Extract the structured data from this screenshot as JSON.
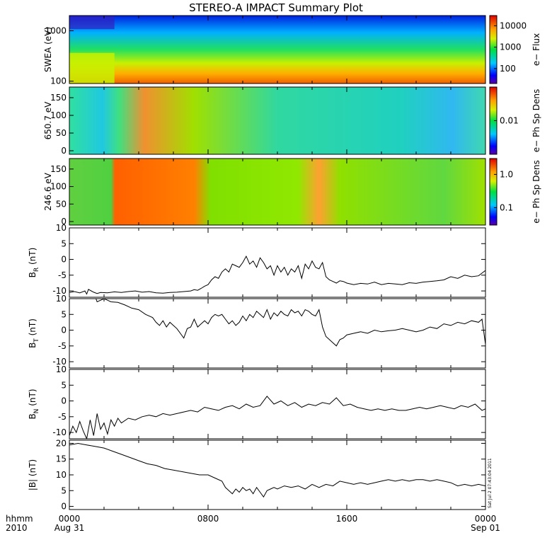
{
  "title": "STEREO-A IMPACT Summary Plot",
  "x_axis": {
    "row1_label": "hhmm",
    "row2_label": "2010",
    "ticks": [
      {
        "hour": 0,
        "label": "0000",
        "sublabel": "Aug 31"
      },
      {
        "hour": 8,
        "label": "0800",
        "sublabel": ""
      },
      {
        "hour": 16,
        "label": "1600",
        "sublabel": ""
      },
      {
        "hour": 24,
        "label": "0000",
        "sublabel": "Sep 01"
      }
    ],
    "range_hours": [
      0,
      24
    ]
  },
  "stamp": "Sat Jul  2 07:43:04 2011",
  "spectrograms": [
    {
      "id": "swea",
      "ylabel": "SWEA (eV)",
      "yscale": "log",
      "yticks": [
        {
          "v": 100,
          "label": "100"
        },
        {
          "v": 1000,
          "label": "1000"
        }
      ],
      "ylim": [
        90,
        2000
      ],
      "colorbar": {
        "label": "e− Flux",
        "scale": "log",
        "range": [
          20,
          30000
        ],
        "ticks": [
          {
            "v": 100,
            "label": "100"
          },
          {
            "v": 1000,
            "label": "1000"
          },
          {
            "v": 10000,
            "label": "10000"
          }
        ]
      }
    },
    {
      "id": "pad650",
      "ylabel": "650.7 eV",
      "yscale": "linear",
      "yticks": [
        {
          "v": 0,
          "label": "0"
        },
        {
          "v": 50,
          "label": "50"
        },
        {
          "v": 100,
          "label": "100"
        },
        {
          "v": 150,
          "label": "150"
        }
      ],
      "ylim": [
        -10,
        180
      ],
      "colorbar": {
        "label": "e− Ph Sp Dens",
        "scale": "log",
        "range": [
          0.001,
          0.1
        ],
        "ticks": [
          {
            "v": 0.01,
            "label": "0.01"
          }
        ]
      }
    },
    {
      "id": "pad246",
      "ylabel": "246.6 eV",
      "yscale": "linear",
      "yticks": [
        {
          "v": 0,
          "label": "0"
        },
        {
          "v": 50,
          "label": "50"
        },
        {
          "v": 100,
          "label": "100"
        },
        {
          "v": 150,
          "label": "150"
        }
      ],
      "ylim": [
        -10,
        180
      ],
      "colorbar": {
        "label": "e− Ph Sp Dens",
        "scale": "log",
        "range": [
          0.03,
          3.0
        ],
        "ticks": [
          {
            "v": 0.1,
            "label": "0.1"
          },
          {
            "v": 1.0,
            "label": "1.0"
          }
        ]
      }
    }
  ],
  "chart_data": [
    {
      "type": "line",
      "id": "br",
      "ylabel": "BR (nT)",
      "ylabel_main": "B",
      "ylabel_sub": "R",
      "ylabel_unit": "(nT)",
      "ylim": [
        -12,
        10
      ],
      "yticks": [
        -10,
        -5,
        0,
        5,
        10
      ],
      "x": [
        0,
        0.3,
        0.6,
        0.9,
        1.0,
        1.1,
        1.4,
        1.6,
        1.8,
        2.2,
        2.6,
        3.0,
        3.4,
        3.8,
        4.2,
        4.6,
        5.0,
        5.4,
        5.8,
        6.2,
        6.6,
        7.0,
        7.2,
        7.4,
        7.6,
        7.8,
        8.0,
        8.2,
        8.4,
        8.6,
        8.8,
        9.0,
        9.2,
        9.4,
        9.6,
        9.8,
        10.0,
        10.2,
        10.4,
        10.6,
        10.8,
        11.0,
        11.2,
        11.4,
        11.6,
        11.8,
        12.0,
        12.2,
        12.4,
        12.6,
        12.8,
        13.0,
        13.2,
        13.4,
        13.6,
        13.8,
        14.0,
        14.2,
        14.4,
        14.6,
        14.8,
        15.0,
        15.2,
        15.4,
        15.6,
        15.8,
        16.0,
        16.4,
        16.8,
        17.2,
        17.6,
        18.0,
        18.4,
        18.8,
        19.2,
        19.6,
        20.0,
        20.4,
        20.8,
        21.2,
        21.6,
        22.0,
        22.4,
        22.8,
        23.2,
        23.6,
        24.0
      ],
      "y": [
        -10.5,
        -10.2,
        -10.6,
        -10.0,
        -11.0,
        -9.5,
        -10.4,
        -10.8,
        -10.5,
        -10.6,
        -10.3,
        -10.5,
        -10.2,
        -10.0,
        -10.4,
        -10.2,
        -10.6,
        -10.7,
        -10.5,
        -10.4,
        -10.2,
        -10.0,
        -9.6,
        -9.8,
        -9.2,
        -8.5,
        -8.0,
        -6.5,
        -5.5,
        -6.0,
        -4.0,
        -3.0,
        -4.0,
        -1.5,
        -2.0,
        -2.5,
        -1.0,
        1.0,
        -1.5,
        -0.5,
        -2.5,
        0.5,
        -1.0,
        -3.0,
        -2.0,
        -5.0,
        -2.0,
        -4.0,
        -2.5,
        -5.0,
        -3.0,
        -4.0,
        -2.0,
        -6.0,
        -1.5,
        -3.0,
        -0.5,
        -2.5,
        -3.0,
        -1.0,
        -5.5,
        -6.5,
        -7.0,
        -7.5,
        -6.8,
        -7.0,
        -7.5,
        -8.0,
        -7.6,
        -7.8,
        -7.2,
        -8.0,
        -7.6,
        -7.8,
        -8.0,
        -7.4,
        -7.6,
        -7.2,
        -7.0,
        -6.8,
        -6.5,
        -5.5,
        -6.0,
        -5.0,
        -5.5,
        -5.2,
        -3.5
      ]
    },
    {
      "type": "line",
      "id": "bt",
      "ylabel": "BT (nT)",
      "ylabel_main": "B",
      "ylabel_sub": "T",
      "ylabel_unit": "(nT)",
      "ylim": [
        -12,
        10
      ],
      "yticks": [
        -10,
        -5,
        0,
        5,
        10
      ],
      "x": [
        1.5,
        1.6,
        2.0,
        2.2,
        2.4,
        2.8,
        3.2,
        3.6,
        4.0,
        4.4,
        4.8,
        5.0,
        5.2,
        5.4,
        5.6,
        5.8,
        6.0,
        6.2,
        6.4,
        6.6,
        6.8,
        7.0,
        7.2,
        7.4,
        7.6,
        7.8,
        8.0,
        8.2,
        8.4,
        8.6,
        8.8,
        9.0,
        9.2,
        9.4,
        9.6,
        9.8,
        10.0,
        10.2,
        10.4,
        10.6,
        10.8,
        11.0,
        11.2,
        11.4,
        11.6,
        11.8,
        12.0,
        12.2,
        12.4,
        12.6,
        12.8,
        13.0,
        13.2,
        13.4,
        13.6,
        13.8,
        14.0,
        14.2,
        14.4,
        14.6,
        14.8,
        15.0,
        15.2,
        15.4,
        15.6,
        15.8,
        16.0,
        16.4,
        16.8,
        17.2,
        17.6,
        18.0,
        18.4,
        18.8,
        19.2,
        19.6,
        20.0,
        20.4,
        20.8,
        21.2,
        21.6,
        22.0,
        22.4,
        22.8,
        23.2,
        23.6,
        23.8,
        24.0
      ],
      "y": [
        10.5,
        9.0,
        10.0,
        9.5,
        9.0,
        8.8,
        8.0,
        7.0,
        6.5,
        5.0,
        4.0,
        2.5,
        1.5,
        3.0,
        1.0,
        2.5,
        1.5,
        0.5,
        -1.0,
        -2.5,
        0.5,
        1.0,
        3.5,
        1.0,
        2.0,
        3.0,
        2.0,
        4.0,
        5.0,
        4.5,
        5.0,
        3.5,
        2.0,
        3.0,
        1.5,
        2.5,
        4.5,
        3.0,
        5.0,
        4.0,
        6.0,
        5.0,
        4.0,
        6.5,
        3.5,
        5.5,
        4.5,
        6.0,
        5.0,
        4.5,
        6.5,
        5.5,
        6.0,
        4.5,
        6.5,
        6.0,
        5.0,
        4.5,
        6.5,
        1.0,
        -2.0,
        -3.0,
        -4.0,
        -5.0,
        -3.0,
        -2.5,
        -1.5,
        -1.0,
        -0.5,
        -1.0,
        0.0,
        -0.5,
        -0.2,
        0.0,
        0.5,
        0.0,
        -0.5,
        0.0,
        1.0,
        0.5,
        2.0,
        1.5,
        2.5,
        2.0,
        3.0,
        2.5,
        3.5,
        -4.5
      ]
    },
    {
      "type": "line",
      "id": "bn",
      "ylabel": "BN (nT)",
      "ylabel_main": "B",
      "ylabel_sub": "N",
      "ylabel_unit": "(nT)",
      "ylim": [
        -12,
        10
      ],
      "yticks": [
        -10,
        -5,
        0,
        5,
        10
      ],
      "x": [
        0,
        0.2,
        0.4,
        0.6,
        0.8,
        1.0,
        1.2,
        1.4,
        1.6,
        1.8,
        2.0,
        2.2,
        2.4,
        2.6,
        2.8,
        3.0,
        3.4,
        3.8,
        4.2,
        4.6,
        5.0,
        5.4,
        5.8,
        6.2,
        6.6,
        7.0,
        7.4,
        7.8,
        8.2,
        8.6,
        9.0,
        9.4,
        9.8,
        10.2,
        10.6,
        11.0,
        11.4,
        11.8,
        12.2,
        12.6,
        13.0,
        13.4,
        13.8,
        14.2,
        14.6,
        15.0,
        15.4,
        15.8,
        16.2,
        16.6,
        17.0,
        17.4,
        17.8,
        18.2,
        18.6,
        19.0,
        19.4,
        19.8,
        20.2,
        20.6,
        21.0,
        21.4,
        21.8,
        22.2,
        22.6,
        23.0,
        23.4,
        23.8,
        24.0
      ],
      "y": [
        -11.0,
        -8.0,
        -10.0,
        -6.5,
        -9.5,
        -12.0,
        -6.0,
        -11.0,
        -4.0,
        -9.0,
        -7.0,
        -10.5,
        -6.0,
        -8.0,
        -5.5,
        -7.0,
        -5.5,
        -6.0,
        -5.0,
        -4.5,
        -5.0,
        -4.0,
        -4.5,
        -4.0,
        -3.5,
        -3.0,
        -3.5,
        -2.0,
        -2.5,
        -3.0,
        -2.0,
        -1.5,
        -2.5,
        -1.0,
        -2.0,
        -1.5,
        1.5,
        -1.0,
        0.0,
        -1.5,
        -0.5,
        -2.0,
        -1.0,
        -1.5,
        -0.5,
        -1.0,
        1.0,
        -1.5,
        -1.0,
        -2.0,
        -2.5,
        -3.0,
        -2.5,
        -3.0,
        -2.5,
        -3.0,
        -3.0,
        -2.5,
        -2.0,
        -2.5,
        -2.0,
        -1.5,
        -2.0,
        -2.5,
        -1.5,
        -2.0,
        -1.0,
        -3.0,
        -2.5
      ]
    },
    {
      "type": "line",
      "id": "bmag",
      "ylabel": "|B| (nT)",
      "ylabel_main": "|B|",
      "ylabel_sub": "",
      "ylabel_unit": "(nT)",
      "ylim": [
        -1,
        21
      ],
      "yticks": [
        0,
        5,
        10,
        15,
        20
      ],
      "x": [
        0,
        0.5,
        1.0,
        1.5,
        2.0,
        2.5,
        3.0,
        3.5,
        4.0,
        4.5,
        5.0,
        5.5,
        6.0,
        6.5,
        7.0,
        7.5,
        8.0,
        8.4,
        8.8,
        9.0,
        9.2,
        9.4,
        9.6,
        9.8,
        10.0,
        10.2,
        10.4,
        10.6,
        10.8,
        11.0,
        11.2,
        11.4,
        11.6,
        11.8,
        12.0,
        12.4,
        12.8,
        13.2,
        13.6,
        14.0,
        14.4,
        14.8,
        15.2,
        15.6,
        16.0,
        16.4,
        16.8,
        17.2,
        17.6,
        18.0,
        18.4,
        18.8,
        19.2,
        19.6,
        20.0,
        20.4,
        20.8,
        21.2,
        21.6,
        22.0,
        22.4,
        22.8,
        23.2,
        23.6,
        24.0
      ],
      "y": [
        19.5,
        20.0,
        19.5,
        19.0,
        18.5,
        17.5,
        16.5,
        15.5,
        14.5,
        13.5,
        13.0,
        12.0,
        11.5,
        11.0,
        10.5,
        10.0,
        10.0,
        9.0,
        8.0,
        6.0,
        5.0,
        4.0,
        5.5,
        4.5,
        6.0,
        5.0,
        5.5,
        4.0,
        6.0,
        4.5,
        3.0,
        5.0,
        5.5,
        6.0,
        5.5,
        6.5,
        6.0,
        6.5,
        5.5,
        7.0,
        6.0,
        7.0,
        6.5,
        8.0,
        7.5,
        7.0,
        7.5,
        7.0,
        7.5,
        8.0,
        8.5,
        8.0,
        8.5,
        8.0,
        8.5,
        8.5,
        8.0,
        8.5,
        8.0,
        7.5,
        6.5,
        7.0,
        6.5,
        7.0,
        6.5
      ]
    }
  ]
}
